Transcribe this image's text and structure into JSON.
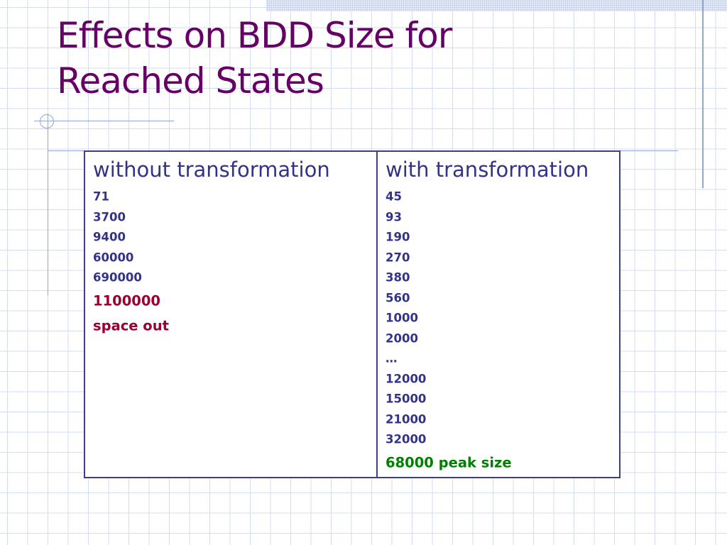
{
  "title": {
    "lines": [
      "Effects on BDD Size for",
      "Reached States"
    ]
  },
  "table": {
    "columns": [
      {
        "header": "without transformation",
        "items": [
          "71",
          "3700",
          "9400",
          "60000",
          "690000"
        ],
        "highlight": {
          "color": "#990033",
          "items": [
            "1100000",
            "space out"
          ]
        }
      },
      {
        "header": "with transformation",
        "items": [
          "45",
          "93",
          "190",
          "270",
          "380",
          "560",
          "1000",
          "2000",
          "…",
          "12000",
          "15000",
          "21000",
          "32000"
        ],
        "highlight": {
          "color": "#008000",
          "items": [
            "68000 peak size"
          ]
        }
      }
    ]
  }
}
